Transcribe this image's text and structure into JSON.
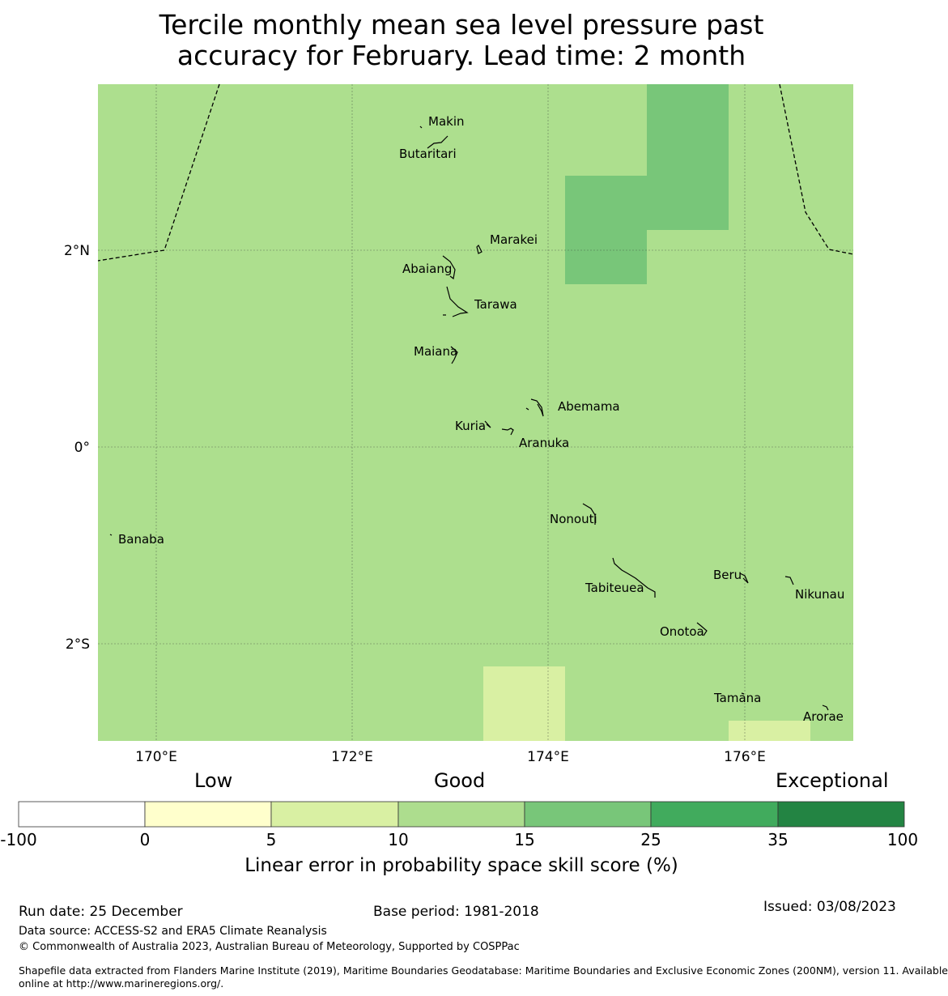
{
  "title": {
    "line1": "Tercile monthly mean sea level pressure past",
    "line2": "accuracy for February. Lead time: 2 month"
  },
  "map": {
    "background_color": "#addf8e",
    "cells": [
      {
        "value_range": "15-25",
        "color": "#78c679"
      },
      {
        "value_range": "15-25",
        "color": "#78c679"
      },
      {
        "value_range": "5-10",
        "color": "#d9f0a3"
      },
      {
        "value_range": "5-10",
        "color": "#d9f0a3"
      }
    ],
    "longitude_labels": [
      "170°E",
      "172°E",
      "174°E",
      "176°E"
    ],
    "latitude_labels": [
      "2°N",
      "0°",
      "2°S"
    ],
    "islands": [
      "Makin",
      "Butaritari",
      "Marakei",
      "Abaiang",
      "Tarawa",
      "Maiana",
      "Abemama",
      "Kuria",
      "Aranuka",
      "Nonouti",
      "Banaba",
      "Beru",
      "Nikunau",
      "Tabiteuea",
      "Onotoa",
      "Tamana",
      "Arorae"
    ]
  },
  "categories": {
    "low": "Low",
    "good": "Good",
    "exceptional": "Exceptional"
  },
  "colorbar": {
    "ticks": [
      "-100",
      "0",
      "5",
      "10",
      "15",
      "25",
      "35",
      "100"
    ],
    "colors": [
      "#ffffff",
      "#ffffcc",
      "#d9f0a3",
      "#addd8e",
      "#78c679",
      "#41ab5d",
      "#238443"
    ],
    "label": "Linear error in probability space skill score (%)"
  },
  "footer": {
    "run_date": "Run date: 25 December",
    "base_period": "Base period: 1981-2018",
    "issued": "Issued: 03/08/2023",
    "data_source": "Data source: ACCESS-S2 and ERA5 Climate Reanalysis",
    "copyright": "© Commonwealth of Australia 2023, Australian Bureau of Meteorology, Supported by COSPPac",
    "shapefile_line1": "Shapefile data extracted from Flanders Marine Institute (2019), Maritime Boundaries Geodatabase: Maritime Boundaries and Exclusive Economic Zones (200NM), version 11. Available",
    "shapefile_line2": "online at http://www.marineregions.org/."
  }
}
